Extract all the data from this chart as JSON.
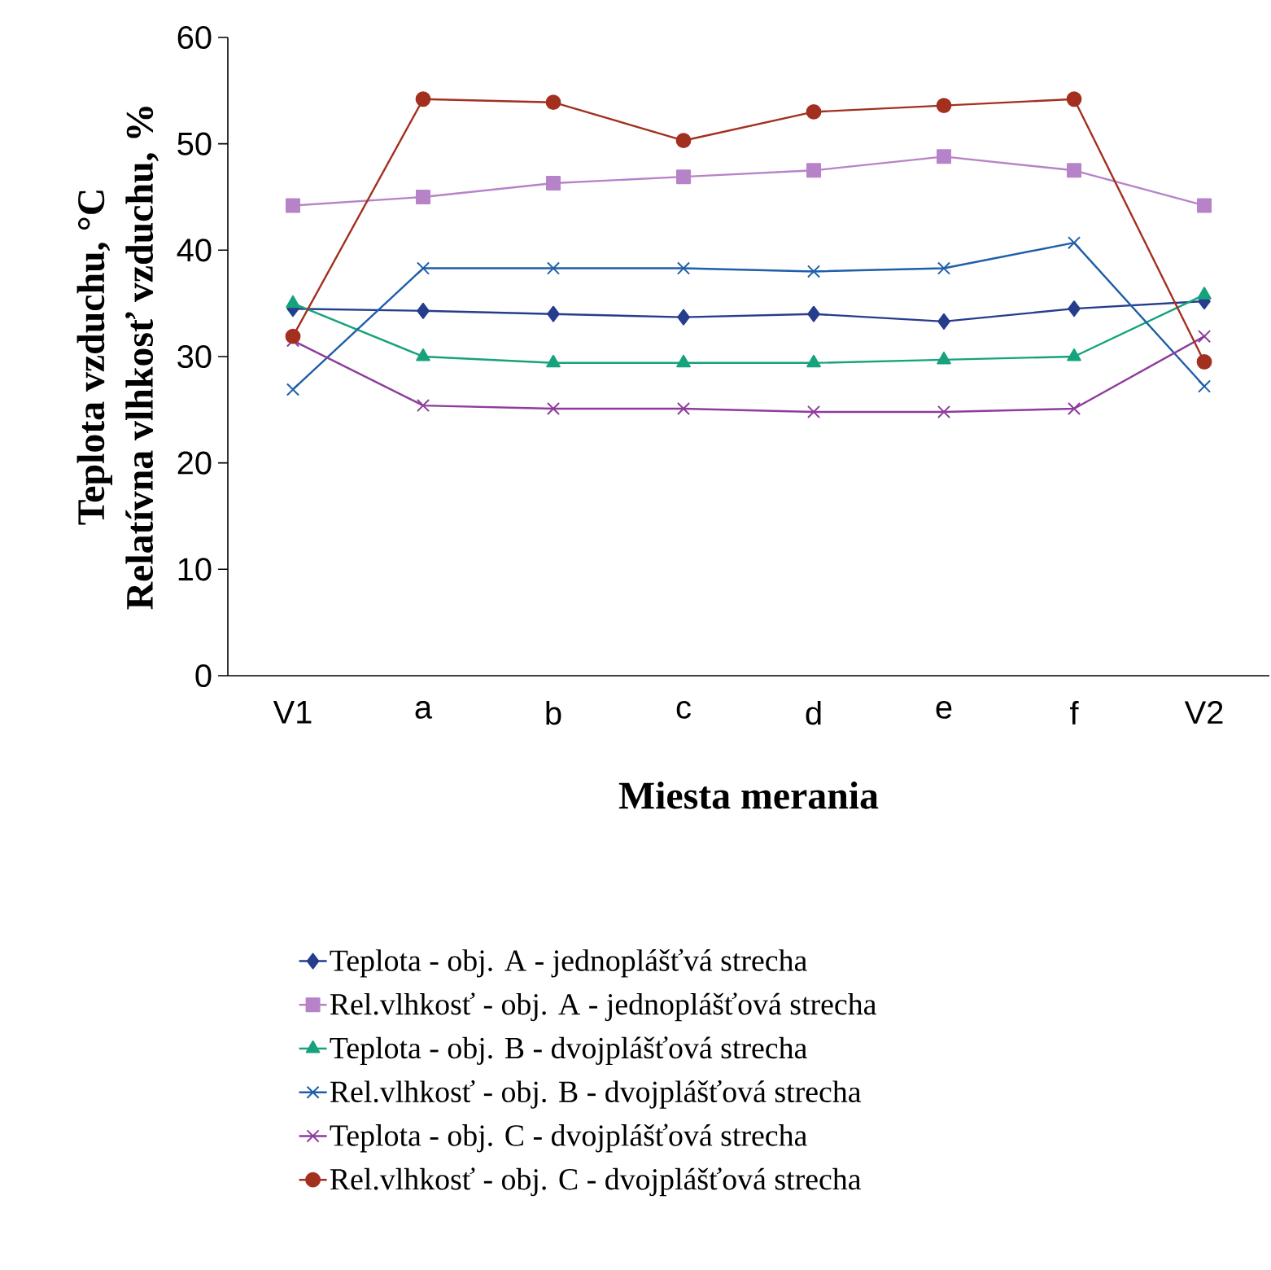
{
  "chart_data": {
    "type": "line",
    "xlabel": "Miesta merania",
    "ylabel": [
      "Teplota vzduchu, °C",
      "Relatívna vlhkosť vzduchu, %"
    ],
    "categories": [
      "V1",
      "a",
      "b",
      "c",
      "d",
      "e",
      "f",
      "V2"
    ],
    "ylim": [
      0,
      60
    ],
    "yticks": [
      0,
      10,
      20,
      30,
      40,
      50,
      60
    ],
    "legend": "bottom",
    "grid": false,
    "series": [
      {
        "name": "Teplota - obj. A - jednoplášťvá strecha",
        "color": "#253d8c",
        "marker": "diamond",
        "values": [
          34.5,
          34.3,
          34.0,
          33.7,
          34.0,
          33.3,
          34.5,
          35.2
        ]
      },
      {
        "name": "Rel.vlhkosť - obj. A - jednoplášťová strecha",
        "color": "#b783c8",
        "marker": "square",
        "values": [
          44.2,
          45.0,
          46.3,
          46.9,
          47.5,
          48.8,
          47.5,
          44.2
        ]
      },
      {
        "name": "Teplota - obj. B - dvojplášťová strecha",
        "color": "#16a27c",
        "marker": "triangle",
        "values": [
          35.0,
          30.0,
          29.4,
          29.4,
          29.4,
          29.7,
          30.0,
          35.8
        ]
      },
      {
        "name": "Rel.vlhkosť - obj. B - dvojplášťová strecha",
        "color": "#1f5ea8",
        "marker": "cross",
        "values": [
          26.9,
          38.3,
          38.3,
          38.3,
          38.0,
          38.3,
          40.7,
          27.2
        ]
      },
      {
        "name": "Teplota - obj. C - dvojplášťová strecha",
        "color": "#8e3c9c",
        "marker": "cross",
        "values": [
          31.5,
          25.4,
          25.1,
          25.1,
          24.8,
          24.8,
          25.1,
          31.9
        ]
      },
      {
        "name": "Rel.vlhkosť - obj. C - dvojplášťová strecha",
        "color": "#a3301f",
        "marker": "circle",
        "values": [
          31.9,
          54.2,
          53.9,
          50.3,
          53.0,
          53.6,
          54.2,
          29.5
        ]
      }
    ]
  }
}
